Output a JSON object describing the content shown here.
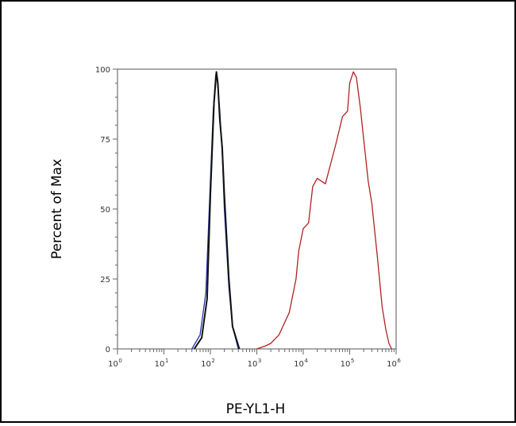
{
  "chart_data": {
    "type": "line",
    "title": "",
    "xlabel": "PE-YL1-H",
    "ylabel": "Percent of Max",
    "x_scale": "log",
    "xlim": [
      1,
      1000000
    ],
    "ylim": [
      0,
      100
    ],
    "x_ticks": [
      {
        "value": 1,
        "base": "10",
        "exp": "0"
      },
      {
        "value": 10,
        "base": "10",
        "exp": "1"
      },
      {
        "value": 100,
        "base": "10",
        "exp": "2"
      },
      {
        "value": 1000,
        "base": "10",
        "exp": "3"
      },
      {
        "value": 10000,
        "base": "10",
        "exp": "4"
      },
      {
        "value": 100000,
        "base": "10",
        "exp": "5"
      },
      {
        "value": 1000000,
        "base": "10",
        "exp": "6"
      }
    ],
    "y_ticks": [
      0,
      25,
      50,
      75,
      100
    ],
    "y_tick_labels": [
      "0",
      "25",
      "50",
      "75",
      "100"
    ],
    "grid": false,
    "legend": "none",
    "series": [
      {
        "color": "#2233aa",
        "x": [
          40,
          60,
          80,
          100,
          115,
          130,
          140,
          160,
          180,
          200,
          250,
          300,
          400
        ],
        "y": [
          0,
          5,
          20,
          60,
          85,
          98,
          97,
          85,
          70,
          50,
          22,
          8,
          0
        ]
      },
      {
        "color": "#111111",
        "x": [
          45,
          65,
          85,
          100,
          120,
          135,
          145,
          160,
          180,
          200,
          250,
          300,
          420
        ],
        "y": [
          0,
          4,
          18,
          55,
          88,
          99,
          95,
          82,
          72,
          55,
          25,
          8,
          0
        ]
      },
      {
        "color": "#b22222",
        "x": [
          1000,
          1500,
          2000,
          3000,
          5000,
          7000,
          8000,
          10000,
          13000,
          16000,
          20000,
          30000,
          50000,
          70000,
          90000,
          100000,
          120000,
          140000,
          170000,
          200000,
          250000,
          300000,
          400000,
          500000,
          600000,
          700000,
          800000
        ],
        "y": [
          0,
          1,
          2,
          5,
          13,
          25,
          35,
          43,
          45,
          58,
          61,
          59,
          73,
          83,
          85,
          95,
          99,
          97,
          86,
          75,
          60,
          52,
          32,
          15,
          7,
          2,
          0
        ]
      }
    ]
  }
}
